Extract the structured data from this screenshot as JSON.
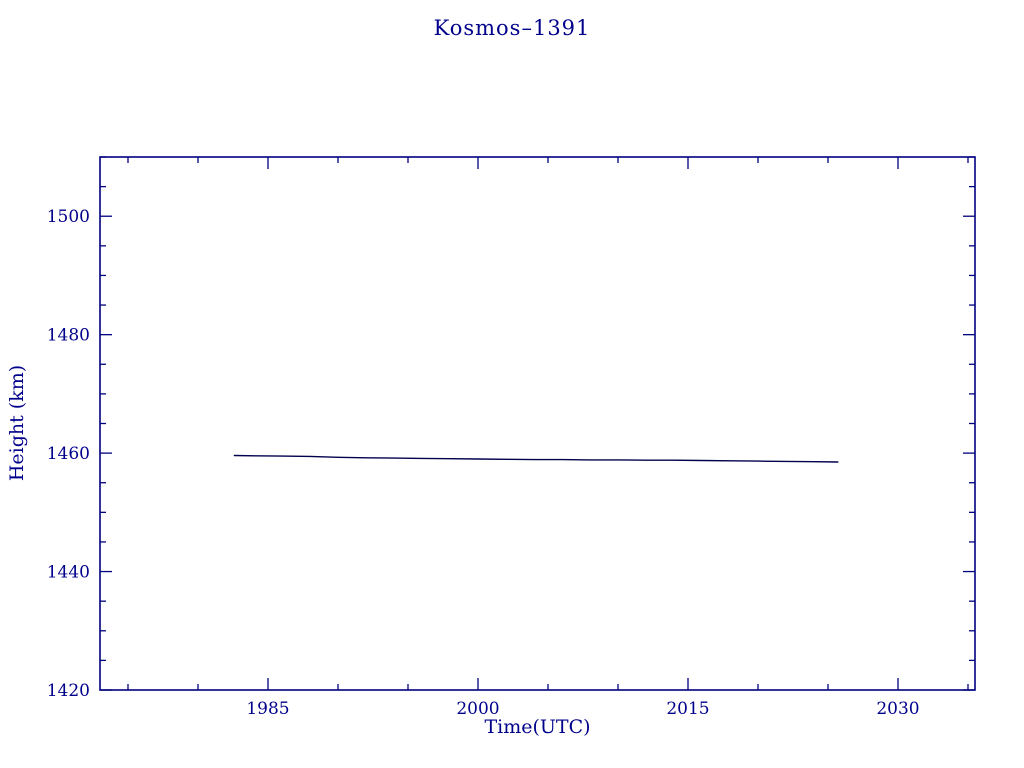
{
  "page": {
    "background": "#ffffff"
  },
  "chart_data": {
    "type": "line",
    "title": "Kosmos–1391",
    "xlabel": "Time(UTC)",
    "ylabel": "Height (km)",
    "xlim": [
      1973,
      2035.5
    ],
    "ylim": [
      1420,
      1510
    ],
    "x_major_ticks": [
      1985,
      2000,
      2015,
      2030
    ],
    "x_minor_step": 5,
    "y_major_ticks": [
      1420,
      1440,
      1460,
      1480,
      1500
    ],
    "y_minor_step": 5,
    "grid": false,
    "legend": "none",
    "axis_color": "#000080",
    "text_color": "#00008b",
    "line_color": "#00004d",
    "series": [
      {
        "name": "height-km",
        "points": [
          [
            1982.6,
            1459.6
          ],
          [
            1984,
            1459.55
          ],
          [
            1986,
            1459.5
          ],
          [
            1988,
            1459.45
          ],
          [
            1990,
            1459.3
          ],
          [
            1992,
            1459.2
          ],
          [
            1994,
            1459.15
          ],
          [
            1996,
            1459.1
          ],
          [
            1998,
            1459.05
          ],
          [
            2000,
            1459.0
          ],
          [
            2002,
            1458.95
          ],
          [
            2004,
            1458.9
          ],
          [
            2006,
            1458.9
          ],
          [
            2008,
            1458.85
          ],
          [
            2010,
            1458.85
          ],
          [
            2012,
            1458.8
          ],
          [
            2014,
            1458.8
          ],
          [
            2016,
            1458.75
          ],
          [
            2018,
            1458.7
          ],
          [
            2020,
            1458.65
          ],
          [
            2022,
            1458.6
          ],
          [
            2024,
            1458.55
          ],
          [
            2025.7,
            1458.5
          ]
        ]
      }
    ]
  }
}
